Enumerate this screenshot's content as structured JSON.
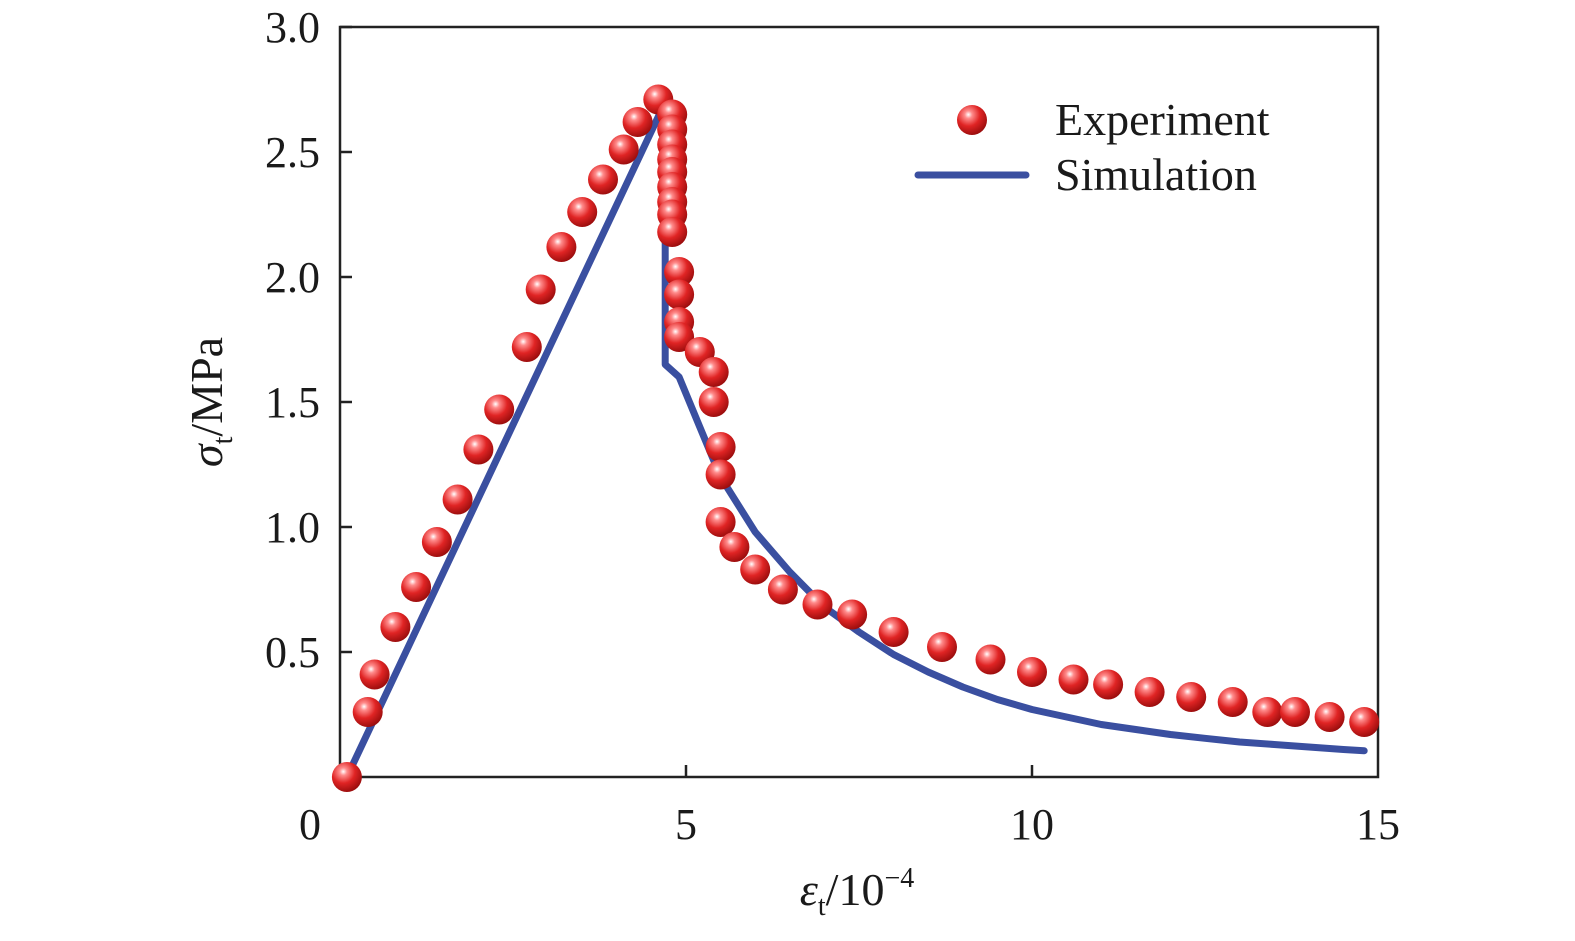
{
  "chart_data": {
    "type": "scatter",
    "xlabel": {
      "symbol": "ε",
      "subscript": "t",
      "rest": "/10",
      "superscript": "−4"
    },
    "ylabel": {
      "symbol": "σ",
      "subscript": "t",
      "rest": "/MPa"
    },
    "xlim": [
      0,
      15
    ],
    "ylim": [
      0,
      3.0
    ],
    "x_ticks": [
      0,
      5,
      10,
      15
    ],
    "x_tick_labels": [
      "0",
      "5",
      "10",
      "15"
    ],
    "y_ticks": [
      0.5,
      1.0,
      1.5,
      2.0,
      2.5,
      3.0
    ],
    "y_tick_labels": [
      "0.5",
      "1.0",
      "1.5",
      "2.0",
      "2.5",
      "3.0"
    ],
    "grid": false,
    "legend_position": "top-right",
    "colors": {
      "experiment": "#d42a2a",
      "simulation": "#3a4fa0"
    },
    "series": [
      {
        "name": "Experiment",
        "kind": "scatter",
        "points": [
          [
            0.1,
            0.0
          ],
          [
            0.4,
            0.26
          ],
          [
            0.5,
            0.41
          ],
          [
            0.8,
            0.6
          ],
          [
            1.1,
            0.76
          ],
          [
            1.4,
            0.94
          ],
          [
            1.7,
            1.11
          ],
          [
            2.0,
            1.31
          ],
          [
            2.3,
            1.47
          ],
          [
            2.7,
            1.72
          ],
          [
            2.9,
            1.95
          ],
          [
            3.2,
            2.12
          ],
          [
            3.5,
            2.26
          ],
          [
            3.8,
            2.39
          ],
          [
            4.1,
            2.51
          ],
          [
            4.3,
            2.62
          ],
          [
            4.6,
            2.71
          ],
          [
            4.8,
            2.65
          ],
          [
            4.8,
            2.59
          ],
          [
            4.8,
            2.53
          ],
          [
            4.8,
            2.47
          ],
          [
            4.8,
            2.42
          ],
          [
            4.8,
            2.36
          ],
          [
            4.8,
            2.3
          ],
          [
            4.8,
            2.25
          ],
          [
            4.8,
            2.18
          ],
          [
            4.9,
            2.02
          ],
          [
            4.9,
            1.93
          ],
          [
            4.9,
            1.82
          ],
          [
            4.9,
            1.76
          ],
          [
            5.2,
            1.7
          ],
          [
            5.4,
            1.62
          ],
          [
            5.4,
            1.5
          ],
          [
            5.5,
            1.32
          ],
          [
            5.5,
            1.21
          ],
          [
            5.5,
            1.02
          ],
          [
            5.7,
            0.92
          ],
          [
            6.0,
            0.83
          ],
          [
            6.4,
            0.75
          ],
          [
            6.9,
            0.69
          ],
          [
            7.4,
            0.65
          ],
          [
            8.0,
            0.58
          ],
          [
            8.7,
            0.52
          ],
          [
            9.4,
            0.47
          ],
          [
            10.0,
            0.42
          ],
          [
            10.6,
            0.39
          ],
          [
            11.1,
            0.37
          ],
          [
            11.7,
            0.34
          ],
          [
            12.3,
            0.32
          ],
          [
            12.9,
            0.3
          ],
          [
            13.4,
            0.26
          ],
          [
            13.8,
            0.26
          ],
          [
            14.3,
            0.24
          ],
          [
            14.8,
            0.22
          ]
        ]
      },
      {
        "name": "Simulation",
        "kind": "line",
        "points": [
          [
            0.1,
            0.0
          ],
          [
            4.7,
            2.7
          ],
          [
            4.7,
            1.65
          ],
          [
            4.9,
            1.6
          ],
          [
            5.2,
            1.4
          ],
          [
            5.5,
            1.2
          ],
          [
            6.0,
            0.98
          ],
          [
            6.5,
            0.82
          ],
          [
            7.0,
            0.68
          ],
          [
            7.5,
            0.58
          ],
          [
            8.0,
            0.49
          ],
          [
            8.5,
            0.42
          ],
          [
            9.0,
            0.36
          ],
          [
            9.5,
            0.31
          ],
          [
            10.0,
            0.27
          ],
          [
            10.5,
            0.24
          ],
          [
            11.0,
            0.21
          ],
          [
            11.5,
            0.19
          ],
          [
            12.0,
            0.17
          ],
          [
            12.5,
            0.155
          ],
          [
            13.0,
            0.14
          ],
          [
            13.5,
            0.13
          ],
          [
            14.0,
            0.12
          ],
          [
            14.5,
            0.11
          ],
          [
            14.8,
            0.105
          ]
        ]
      }
    ]
  }
}
